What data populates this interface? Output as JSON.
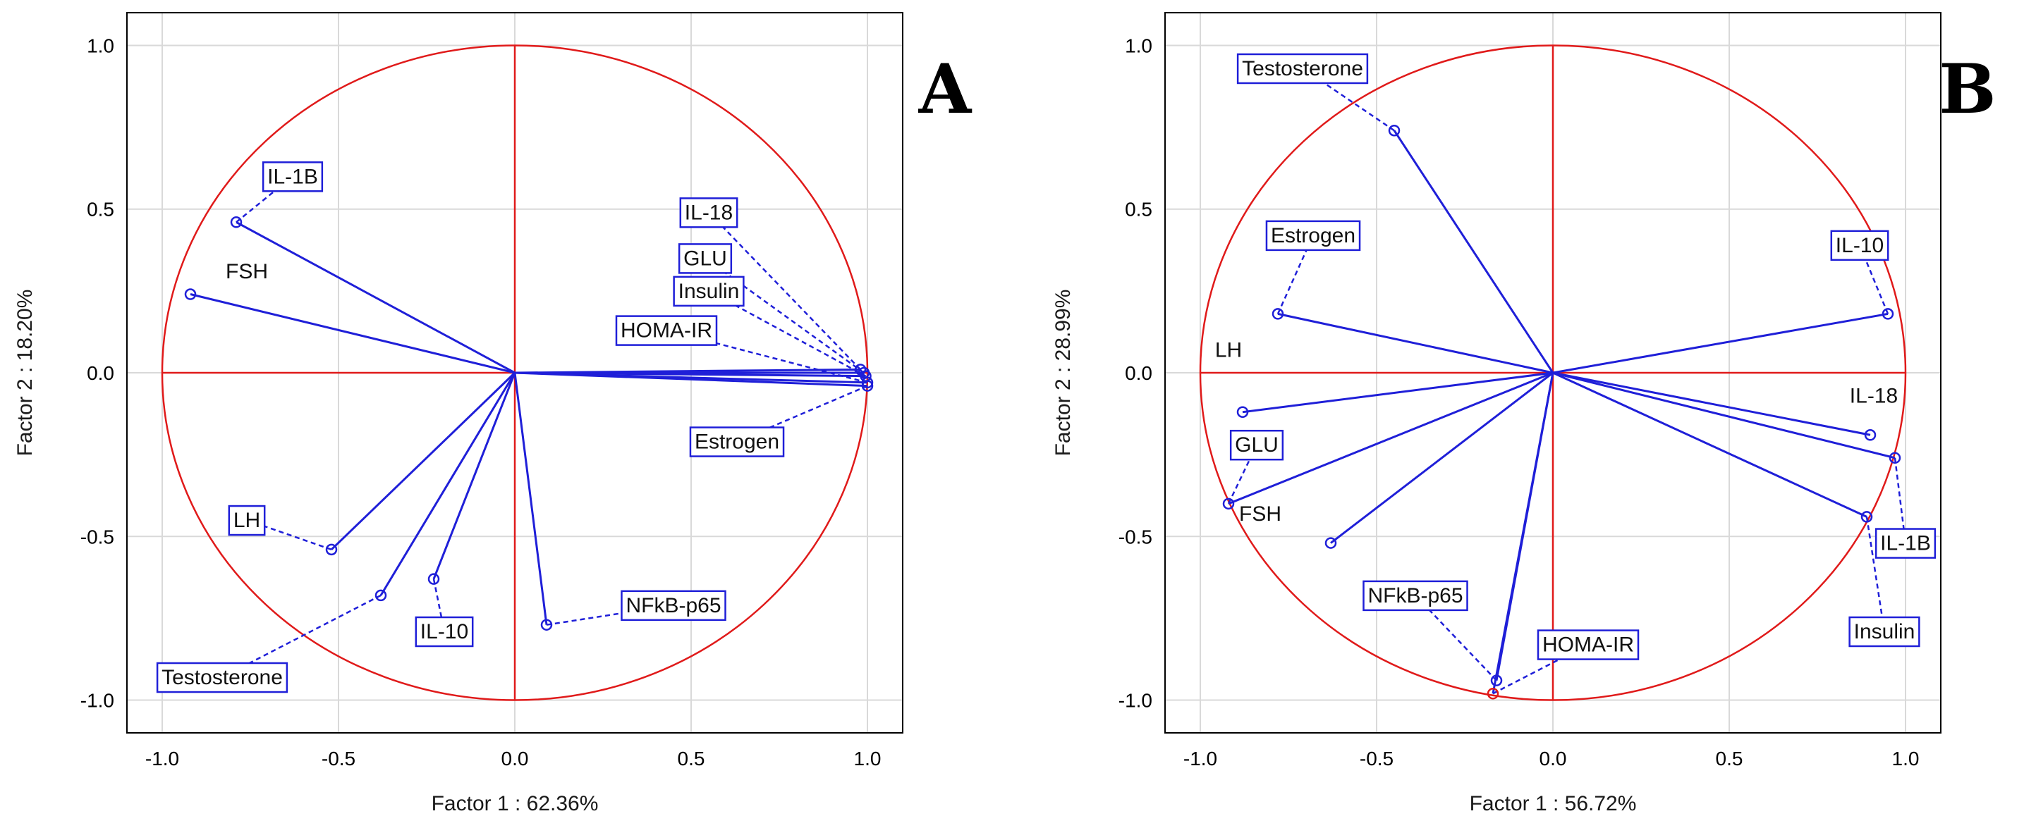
{
  "chart_data": [
    {
      "type": "scatter",
      "panel": "A",
      "title": "",
      "xlabel": "Factor 1 : 62.36%",
      "ylabel": "Factor 2 : 18.20%",
      "xlim": [
        -1.1,
        1.1
      ],
      "ylim": [
        -1.1,
        1.1
      ],
      "xticks": [
        "-1.0",
        "-0.5",
        "0.0",
        "0.5",
        "1.0"
      ],
      "yticks": [
        "-1.0",
        "-0.5",
        "0.0",
        "0.5",
        "1.0"
      ],
      "grid": true,
      "unit_circle": true,
      "points": [
        {
          "name": "IL-1B",
          "x": -0.79,
          "y": 0.46,
          "boxed": true,
          "label_x": -0.63,
          "label_y": 0.6
        },
        {
          "name": "FSH",
          "x": -0.92,
          "y": 0.24,
          "boxed": false,
          "label_x": -0.76,
          "label_y": 0.31
        },
        {
          "name": "IL-18",
          "x": 0.98,
          "y": 0.01,
          "boxed": true,
          "label_x": 0.55,
          "label_y": 0.49
        },
        {
          "name": "GLU",
          "x": 0.99,
          "y": 0.0,
          "boxed": true,
          "label_x": 0.54,
          "label_y": 0.35
        },
        {
          "name": "Insulin",
          "x": 0.995,
          "y": -0.01,
          "boxed": true,
          "label_x": 0.55,
          "label_y": 0.25
        },
        {
          "name": "HOMA-IR",
          "x": 1.0,
          "y": -0.03,
          "boxed": true,
          "label_x": 0.43,
          "label_y": 0.13
        },
        {
          "name": "Estrogen",
          "x": 1.0,
          "y": -0.04,
          "boxed": true,
          "label_x": 0.63,
          "label_y": -0.21
        },
        {
          "name": "LH",
          "x": -0.52,
          "y": -0.54,
          "boxed": true,
          "label_x": -0.76,
          "label_y": -0.45
        },
        {
          "name": "Testosterone",
          "x": -0.38,
          "y": -0.68,
          "boxed": true,
          "label_x": -0.83,
          "label_y": -0.93
        },
        {
          "name": "IL-10",
          "x": -0.23,
          "y": -0.63,
          "boxed": true,
          "label_x": -0.2,
          "label_y": -0.79
        },
        {
          "name": "NFkB-p65",
          "x": 0.09,
          "y": -0.77,
          "boxed": true,
          "label_x": 0.45,
          "label_y": -0.71
        }
      ]
    },
    {
      "type": "scatter",
      "panel": "B",
      "title": "",
      "xlabel": "Factor 1 : 56.72%",
      "ylabel": "Factor 2 : 28.99%",
      "xlim": [
        -1.1,
        1.1
      ],
      "ylim": [
        -1.1,
        1.1
      ],
      "xticks": [
        "-1.0",
        "-0.5",
        "0.0",
        "0.5",
        "1.0"
      ],
      "yticks": [
        "-1.0",
        "-0.5",
        "0.0",
        "0.5",
        "1.0"
      ],
      "grid": true,
      "unit_circle": true,
      "points": [
        {
          "name": "Testosterone",
          "x": -0.45,
          "y": 0.74,
          "boxed": true,
          "label_x": -0.71,
          "label_y": 0.93
        },
        {
          "name": "Estrogen",
          "x": -0.78,
          "y": 0.18,
          "boxed": true,
          "label_x": -0.68,
          "label_y": 0.42
        },
        {
          "name": "IL-10",
          "x": 0.95,
          "y": 0.18,
          "boxed": true,
          "label_x": 0.87,
          "label_y": 0.39
        },
        {
          "name": "LH",
          "x": -0.88,
          "y": -0.12,
          "boxed": false,
          "label_x": -0.92,
          "label_y": 0.07
        },
        {
          "name": "IL-18",
          "x": 0.9,
          "y": -0.19,
          "boxed": false,
          "label_x": 0.91,
          "label_y": -0.07
        },
        {
          "name": "GLU",
          "x": -0.92,
          "y": -0.4,
          "boxed": true,
          "label_x": -0.84,
          "label_y": -0.22
        },
        {
          "name": "FSH",
          "x": -0.63,
          "y": -0.52,
          "boxed": false,
          "label_x": -0.83,
          "label_y": -0.43
        },
        {
          "name": "IL-1B",
          "x": 0.97,
          "y": -0.26,
          "boxed": true,
          "label_x": 1.0,
          "label_y": -0.52
        },
        {
          "name": "Insulin",
          "x": 0.89,
          "y": -0.44,
          "boxed": true,
          "label_x": 0.94,
          "label_y": -0.79
        },
        {
          "name": "NFkB-p65",
          "x": -0.16,
          "y": -0.94,
          "boxed": true,
          "label_x": -0.39,
          "label_y": -0.68
        },
        {
          "name": "HOMA-IR",
          "x": -0.17,
          "y": -0.98,
          "boxed": true,
          "label_x": 0.1,
          "label_y": -0.83,
          "red_marker": true
        }
      ]
    }
  ]
}
